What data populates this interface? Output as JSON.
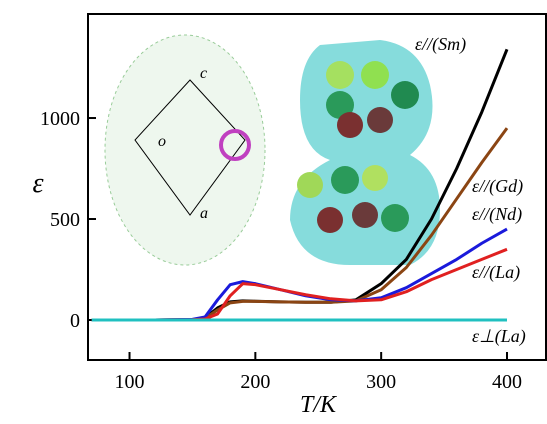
{
  "chart_data": {
    "type": "line",
    "x_label": "T/K",
    "y_label": "ε",
    "x": [
      70,
      120,
      150,
      160,
      170,
      180,
      190,
      200,
      220,
      240,
      260,
      280,
      300,
      320,
      340,
      360,
      380,
      400
    ],
    "series": [
      {
        "name": "ε//(Sm)",
        "color": "#000000",
        "values": [
          0,
          0,
          2,
          10,
          60,
          90,
          95,
          93,
          90,
          88,
          88,
          100,
          180,
          300,
          500,
          750,
          1030,
          1340
        ]
      },
      {
        "name": "ε//(Gd)",
        "color": "#8b4513",
        "values": [
          0,
          0,
          2,
          8,
          50,
          85,
          92,
          92,
          90,
          88,
          88,
          95,
          150,
          260,
          420,
          600,
          780,
          950
        ]
      },
      {
        "name": "ε//(Nd)",
        "color": "#1a1adb",
        "values": [
          0,
          0,
          3,
          15,
          100,
          175,
          190,
          180,
          150,
          120,
          100,
          95,
          110,
          160,
          230,
          300,
          380,
          450
        ]
      },
      {
        "name": "ε//(La)",
        "color": "#e02020",
        "values": [
          0,
          0,
          1,
          5,
          30,
          120,
          180,
          175,
          150,
          125,
          105,
          95,
          100,
          140,
          200,
          250,
          300,
          350
        ]
      },
      {
        "name": "ε⊥(La)",
        "color": "#20c0c0",
        "values": [
          0,
          0,
          0,
          0,
          0,
          0,
          0,
          0,
          0,
          0,
          0,
          0,
          0,
          0,
          0,
          0,
          0,
          0
        ]
      }
    ],
    "xlim": [
      67,
      431
    ],
    "xticks": [
      100,
      200,
      300,
      400
    ],
    "ylim": [
      -198,
      1515
    ],
    "yticks": [
      0,
      500,
      1000
    ],
    "inset_labels": [
      "c",
      "o",
      "a"
    ]
  }
}
